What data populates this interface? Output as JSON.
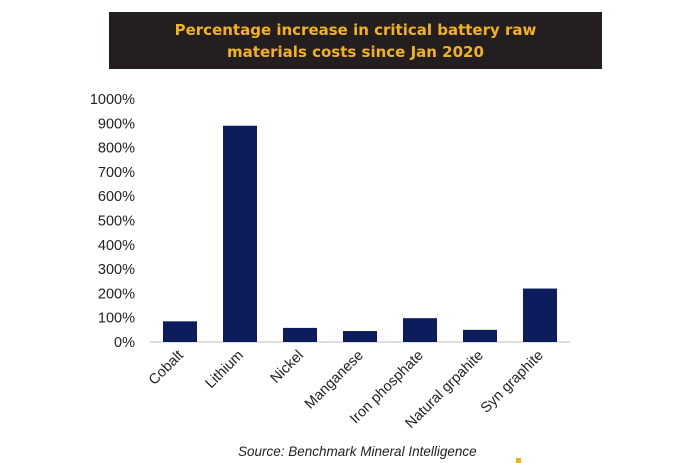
{
  "colors": {
    "bar": "#0c1c5c",
    "title_text": "#f2b21b",
    "banner_bg": "#231f20",
    "axis": "#bdbdbd",
    "text": "#222222",
    "accent": "#f2b21b"
  },
  "chart_data": {
    "type": "bar",
    "title_lines": [
      "Percentage increase in critical battery raw",
      "materials costs since Jan 2020"
    ],
    "categories": [
      "Cobalt",
      "Lithium",
      "Nickel",
      "Manganese",
      "Iron phosphate",
      "Natural grpahite",
      "Syn graphite"
    ],
    "values": [
      85,
      890,
      58,
      45,
      98,
      50,
      220
    ],
    "ylim": [
      0,
      1000
    ],
    "yticks": [
      0,
      100,
      200,
      300,
      400,
      500,
      600,
      700,
      800,
      900,
      1000
    ],
    "ytick_labels": [
      "0%",
      "100%",
      "200%",
      "300%",
      "400%",
      "500%",
      "600%",
      "700%",
      "800%",
      "900%",
      "1000%"
    ],
    "grid": false,
    "legend": "none"
  },
  "source": "Source: Benchmark Mineral Intelligence"
}
